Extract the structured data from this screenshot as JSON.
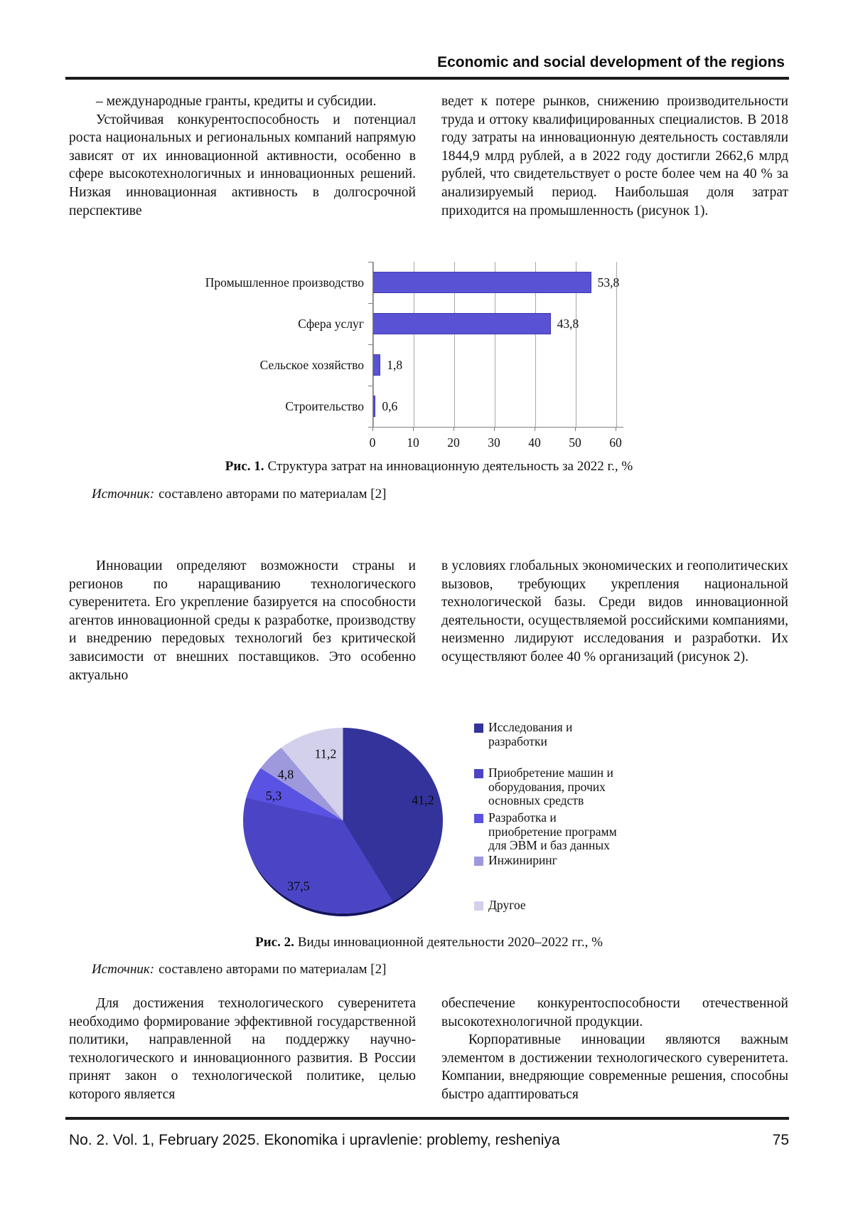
{
  "header": {
    "title": "Economic and social development of the regions"
  },
  "columns_top": {
    "left_p1": "– международные гранты, кредиты и субсидии.",
    "left_p2": "Устойчивая конкурентоспособность и потенциал роста национальных и региональных компаний напрямую зависят от их инновационной активности, особенно в сфере высокотехнологичных и инновационных решений. Низкая инновационная активность в долгосрочной перспективе",
    "right_p1": "ведет к потере рынков, снижению производительности труда и оттоку квалифицированных специалистов. В 2018 году затраты на инновационную деятельность составляли 1844,9 млрд рублей, а в 2022 году достигли 2662,6 млрд рублей, что свидетельствует о росте более чем на 40 % за анализируемый период. Наибольшая доля затрат приходится на промышленность (рисунок 1)."
  },
  "figure1": {
    "caption_label": "Рис. 1.",
    "caption_text": "Структура затрат на инновационную деятельность за 2022 г., %",
    "source_label": "Источник:",
    "source_text": "составлено авторами по материалам [2]"
  },
  "columns_mid": {
    "left_p1": "Инновации определяют возможности страны и регионов по наращиванию технологического суверенитета. Его укрепление базируется на способности агентов инновационной среды к разработке, производству и внедрению передовых технологий без критической зависимости от внешних поставщиков. Это особенно актуально",
    "right_p1": "в условиях глобальных экономических и геополитических вызовов, требующих укрепления национальной технологической базы. Среди видов инновационной деятельности, осуществляемой российскими компаниями, неизменно лидируют исследования и разработки. Их осуществляют более 40 % организаций (рисунок 2)."
  },
  "figure2": {
    "caption_label": "Рис. 2.",
    "caption_text": "Виды инновационной деятельности 2020–2022 гг., %",
    "source_label": "Источник:",
    "source_text": "составлено авторами по материалам [2]"
  },
  "columns_bottom": {
    "left_p1": "Для достижения технологического суверенитета необходимо формирование эффективной государственной политики, направленной на поддержку научно-технологического и инновационного развития. В России принят закон о технологической политике, целью которого является",
    "right_p1": "обеспечение конкурентоспособности отечественной высокотехнологичной продукции.",
    "right_p2": "Корпоративные инновации являются важным элементом в достижении технологического суверенитета. Компании, внедряющие современные решения, способны быстро адаптироваться"
  },
  "footer": {
    "issue": "No. 2. Vol. 1, February 2025. Ekonomika i upravlenie: problemy, resheniya",
    "page_number": "75"
  },
  "chart_data": [
    {
      "type": "bar",
      "orientation": "horizontal",
      "title": "Рис. 1. Структура затрат на инновационную деятельность за 2022 г., %",
      "categories": [
        "Промышленное производство",
        "Сфера услуг",
        "Сельское хозяйство",
        "Строительство"
      ],
      "values": [
        53.8,
        43.8,
        1.8,
        0.6
      ],
      "value_labels": [
        "53,8",
        "43,8",
        "1,8",
        "0,6"
      ],
      "x_ticks": [
        "0",
        "10",
        "20",
        "30",
        "40",
        "50",
        "60"
      ],
      "xlim": [
        0,
        60
      ],
      "xlabel": "",
      "ylabel": "",
      "grid": true,
      "bar_color": "#5a52d4",
      "legend_position": "none"
    },
    {
      "type": "pie",
      "title": "Рис. 2. Виды инновационной деятельности 2020–2022 гг., %",
      "labels": [
        "Исследования и разработки",
        "Приобретение машин и оборудования, прочих основных средств",
        "Разработка и приобретение программ для ЭВМ и баз данных",
        "Инжиниринг",
        "Другое"
      ],
      "values": [
        41.2,
        37.5,
        5.3,
        4.8,
        11.2
      ],
      "value_labels": [
        "41,2",
        "37,5",
        "5,3",
        "4,8",
        "11,2"
      ],
      "colors": [
        "#33339b",
        "#4b45c6",
        "#5a52e2",
        "#9d99dc",
        "#d3d0ec"
      ],
      "start_angle_deg": 0,
      "direction": "clockwise",
      "legend_position": "right"
    }
  ]
}
